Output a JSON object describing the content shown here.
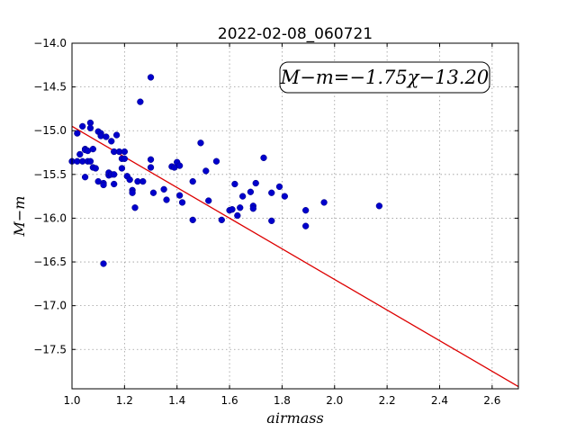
{
  "chart_data": {
    "type": "scatter",
    "title": "2022-02-08_060721",
    "xlabel": "airmass",
    "ylabel": "M−m",
    "xlim": [
      1.0,
      2.7
    ],
    "ylim": [
      -14.0,
      -17.95
    ],
    "y_inverted": true,
    "grid": true,
    "xticks": [
      1.0,
      1.2,
      1.4,
      1.6,
      1.8,
      2.0,
      2.2,
      2.4,
      2.6
    ],
    "xtick_labels": [
      "1.0",
      "1.2",
      "1.4",
      "1.6",
      "1.8",
      "2.0",
      "2.2",
      "2.4",
      "2.6"
    ],
    "yticks": [
      -14.0,
      -14.5,
      -15.0,
      -15.5,
      -16.0,
      -16.5,
      -17.0,
      -17.5
    ],
    "ytick_labels": [
      "−14.0",
      "−14.5",
      "−15.0",
      "−15.5",
      "−16.0",
      "−16.5",
      "−17.0",
      "−17.5"
    ],
    "annotation": "M−m=−1.75χ−13.20",
    "annotation_position": "top-right",
    "fit": {
      "slope": -1.75,
      "intercept": -13.2,
      "x_range": [
        1.0,
        2.7
      ],
      "color": "#dd0000"
    },
    "point_color": "#0000cc",
    "points": [
      [
        1.0,
        -15.35
      ],
      [
        1.02,
        -15.03
      ],
      [
        1.02,
        -15.35
      ],
      [
        1.03,
        -15.27
      ],
      [
        1.04,
        -14.95
      ],
      [
        1.04,
        -15.35
      ],
      [
        1.05,
        -15.21
      ],
      [
        1.05,
        -15.22
      ],
      [
        1.05,
        -15.53
      ],
      [
        1.06,
        -15.35
      ],
      [
        1.06,
        -15.23
      ],
      [
        1.07,
        -14.91
      ],
      [
        1.07,
        -14.97
      ],
      [
        1.07,
        -15.35
      ],
      [
        1.08,
        -15.42
      ],
      [
        1.08,
        -15.21
      ],
      [
        1.09,
        -15.43
      ],
      [
        1.1,
        -15.58
      ],
      [
        1.1,
        -15.01
      ],
      [
        1.11,
        -15.03
      ],
      [
        1.11,
        -15.06
      ],
      [
        1.12,
        -15.6
      ],
      [
        1.12,
        -15.62
      ],
      [
        1.12,
        -16.52
      ],
      [
        1.13,
        -15.07
      ],
      [
        1.14,
        -15.51
      ],
      [
        1.14,
        -15.48
      ],
      [
        1.15,
        -15.5
      ],
      [
        1.15,
        -15.12
      ],
      [
        1.16,
        -15.24
      ],
      [
        1.16,
        -15.5
      ],
      [
        1.16,
        -15.61
      ],
      [
        1.17,
        -15.05
      ],
      [
        1.18,
        -15.24
      ],
      [
        1.19,
        -15.32
      ],
      [
        1.19,
        -15.43
      ],
      [
        1.2,
        -15.32
      ],
      [
        1.2,
        -15.24
      ],
      [
        1.21,
        -15.52
      ],
      [
        1.22,
        -15.56
      ],
      [
        1.23,
        -15.68
      ],
      [
        1.23,
        -15.71
      ],
      [
        1.24,
        -15.88
      ],
      [
        1.25,
        -15.58
      ],
      [
        1.26,
        -14.67
      ],
      [
        1.27,
        -15.58
      ],
      [
        1.3,
        -14.39
      ],
      [
        1.3,
        -15.33
      ],
      [
        1.3,
        -15.42
      ],
      [
        1.31,
        -15.71
      ],
      [
        1.35,
        -15.67
      ],
      [
        1.36,
        -15.79
      ],
      [
        1.38,
        -15.41
      ],
      [
        1.39,
        -15.42
      ],
      [
        1.4,
        -15.36
      ],
      [
        1.41,
        -15.74
      ],
      [
        1.41,
        -15.4
      ],
      [
        1.42,
        -15.82
      ],
      [
        1.46,
        -15.58
      ],
      [
        1.46,
        -16.02
      ],
      [
        1.49,
        -15.14
      ],
      [
        1.51,
        -15.46
      ],
      [
        1.52,
        -15.8
      ],
      [
        1.55,
        -15.35
      ],
      [
        1.57,
        -16.02
      ],
      [
        1.6,
        -15.91
      ],
      [
        1.61,
        -15.9
      ],
      [
        1.62,
        -15.61
      ],
      [
        1.63,
        -15.97
      ],
      [
        1.64,
        -15.88
      ],
      [
        1.65,
        -15.75
      ],
      [
        1.68,
        -15.7
      ],
      [
        1.69,
        -15.86
      ],
      [
        1.69,
        -15.89
      ],
      [
        1.7,
        -15.6
      ],
      [
        1.73,
        -15.31
      ],
      [
        1.76,
        -16.03
      ],
      [
        1.76,
        -15.71
      ],
      [
        1.79,
        -15.64
      ],
      [
        1.81,
        -15.75
      ],
      [
        1.89,
        -15.91
      ],
      [
        1.89,
        -16.09
      ],
      [
        1.96,
        -15.82
      ],
      [
        2.17,
        -15.86
      ]
    ]
  }
}
